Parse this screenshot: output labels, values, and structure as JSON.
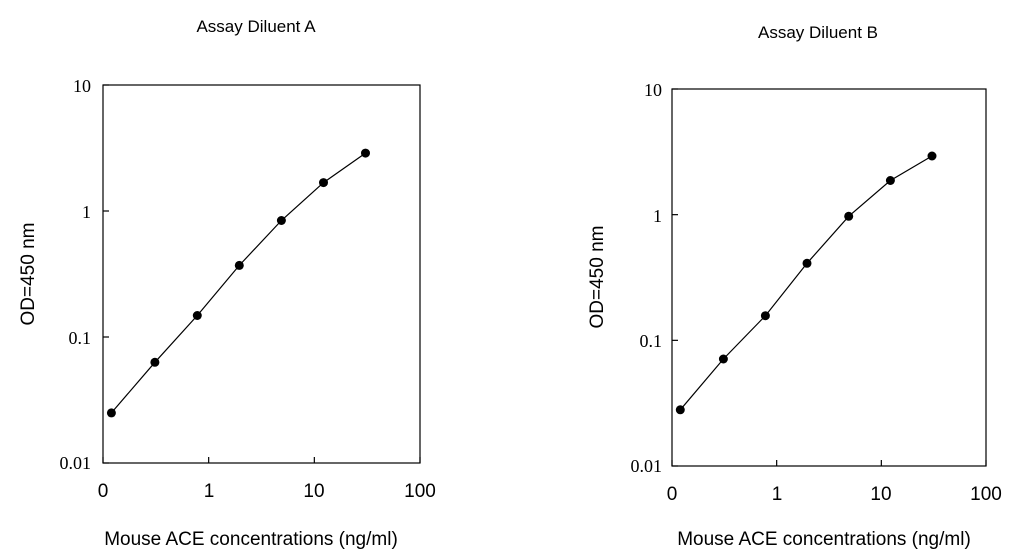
{
  "chart_data": [
    {
      "type": "scatter",
      "title": "Assay Diluent A",
      "xlabel": "Mouse ACE concentrations (ng/ml)",
      "ylabel": "OD=450 nm",
      "x_scale": "log",
      "y_scale": "log",
      "xlim": [
        0.1,
        100
      ],
      "ylim": [
        0.01,
        10
      ],
      "x_tick_labels": [
        "0",
        "1",
        "10",
        "100"
      ],
      "y_tick_labels": [
        "10",
        "1",
        "0.1",
        "0.01"
      ],
      "grid": false,
      "legend": "none",
      "series": [
        {
          "x": [
            0.12,
            0.31,
            0.78,
            1.95,
            4.88,
            12.2,
            30.5
          ],
          "y": [
            0.025,
            0.063,
            0.148,
            0.37,
            0.84,
            1.68,
            2.88
          ]
        }
      ]
    },
    {
      "type": "scatter",
      "title": "Assay Diluent B",
      "xlabel": "Mouse ACE concentrations (ng/ml)",
      "ylabel": "OD=450 nm",
      "x_scale": "log",
      "y_scale": "log",
      "xlim": [
        0.1,
        100
      ],
      "ylim": [
        0.01,
        10
      ],
      "x_tick_labels": [
        "0",
        "1",
        "10",
        "100"
      ],
      "y_tick_labels": [
        "10",
        "1",
        "0.1",
        "0.01"
      ],
      "grid": false,
      "legend": "none",
      "series": [
        {
          "x": [
            0.12,
            0.31,
            0.78,
            1.95,
            4.88,
            12.2,
            30.5
          ],
          "y": [
            0.028,
            0.071,
            0.157,
            0.41,
            0.97,
            1.87,
            2.93
          ]
        }
      ]
    }
  ]
}
